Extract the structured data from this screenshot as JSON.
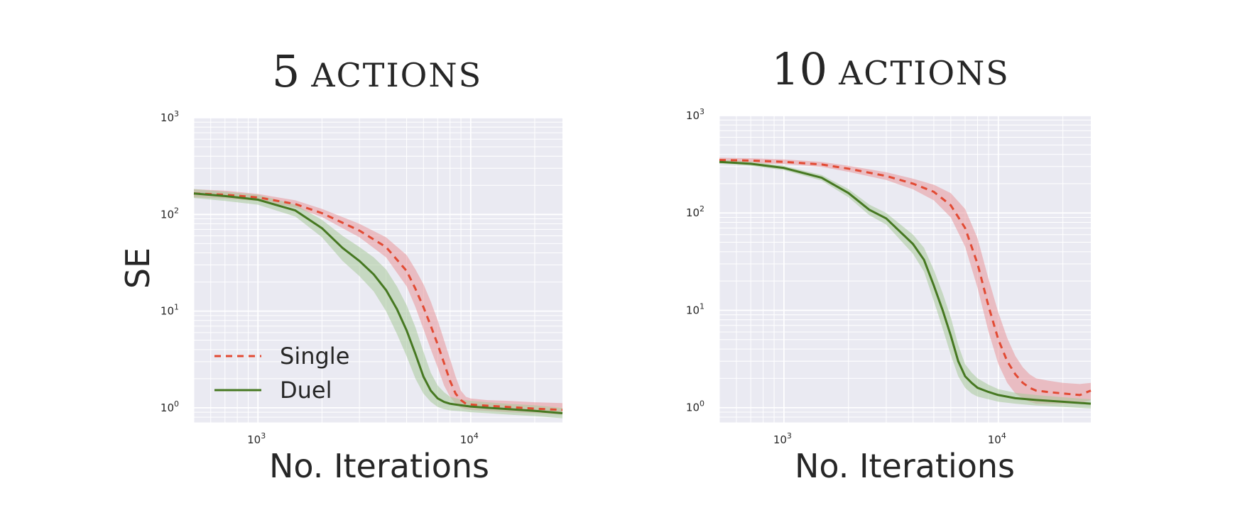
{
  "chart_data": [
    {
      "type": "line",
      "title": "5 actions",
      "title_parts": {
        "number": "5",
        "word": "ACTIONS"
      },
      "xlabel": "No. Iterations",
      "ylabel": "SE",
      "xscale": "log",
      "yscale": "log",
      "xlim": [
        500,
        27000
      ],
      "ylim": [
        0.7,
        1000
      ],
      "xticks": [
        {
          "base": "10",
          "exp": "3"
        },
        {
          "base": "10",
          "exp": "4"
        }
      ],
      "yticks": [
        {
          "base": "10",
          "exp": "0"
        },
        {
          "base": "10",
          "exp": "1"
        },
        {
          "base": "10",
          "exp": "2"
        },
        {
          "base": "10",
          "exp": "3"
        }
      ],
      "grid": true,
      "legend": {
        "placement": "lower-left",
        "entries": [
          "Single",
          "Duel"
        ]
      },
      "series": [
        {
          "name": "Single",
          "style": "dashed",
          "color": "#e24a33",
          "band_color": "#e8959a",
          "x": [
            500,
            700,
            1000,
            1500,
            2000,
            3000,
            4000,
            5000,
            5500,
            6000,
            6500,
            7000,
            7500,
            8000,
            8500,
            9000,
            9500,
            10000,
            12000,
            15000,
            20000,
            27000
          ],
          "y": [
            165,
            160,
            150,
            128,
            103,
            68,
            46,
            26,
            17,
            11,
            7.0,
            4.5,
            2.9,
            1.9,
            1.4,
            1.2,
            1.1,
            1.08,
            1.05,
            1.02,
            0.98,
            0.95
          ],
          "lower": [
            150,
            146,
            138,
            118,
            94,
            58,
            36,
            18,
            11,
            6.5,
            4.0,
            2.6,
            1.7,
            1.3,
            1.1,
            1.0,
            0.97,
            0.95,
            0.93,
            0.9,
            0.88,
            0.85
          ],
          "upper": [
            182,
            176,
            163,
            140,
            114,
            80,
            58,
            38,
            27,
            19,
            12.5,
            8.0,
            5.0,
            3.2,
            2.1,
            1.5,
            1.3,
            1.25,
            1.2,
            1.18,
            1.14,
            1.12
          ]
        },
        {
          "name": "Duel",
          "style": "solid",
          "color": "#467821",
          "band_color": "#a7c99a",
          "x": [
            500,
            700,
            1000,
            1500,
            2000,
            2500,
            3000,
            3500,
            4000,
            4500,
            5000,
            5500,
            6000,
            6500,
            7000,
            7500,
            8000,
            9000,
            10000,
            12000,
            15000,
            20000,
            27000
          ],
          "y": [
            165,
            155,
            142,
            110,
            72,
            45,
            33,
            24,
            16.5,
            10.5,
            6.3,
            3.6,
            2.1,
            1.5,
            1.25,
            1.15,
            1.1,
            1.06,
            1.03,
            1.0,
            0.97,
            0.93,
            0.88
          ],
          "lower": [
            148,
            138,
            126,
            95,
            58,
            33,
            23,
            16,
            10,
            5.8,
            3.4,
            2.0,
            1.4,
            1.15,
            1.02,
            0.97,
            0.94,
            0.92,
            0.9,
            0.88,
            0.85,
            0.82,
            0.78
          ],
          "upper": [
            183,
            172,
            160,
            126,
            88,
            60,
            46,
            36,
            27,
            18,
            11.5,
            6.8,
            3.8,
            2.3,
            1.7,
            1.45,
            1.3,
            1.22,
            1.18,
            1.14,
            1.1,
            1.06,
            1.0
          ]
        }
      ]
    },
    {
      "type": "line",
      "title": "10 actions",
      "title_parts": {
        "number": "10",
        "word": "ACTIONS"
      },
      "xlabel": "No. Iterations",
      "ylabel": "",
      "xscale": "log",
      "yscale": "log",
      "xlim": [
        500,
        27000
      ],
      "ylim": [
        0.7,
        1000
      ],
      "xticks": [
        {
          "base": "10",
          "exp": "3"
        },
        {
          "base": "10",
          "exp": "4"
        }
      ],
      "yticks": [
        {
          "base": "10",
          "exp": "0"
        },
        {
          "base": "10",
          "exp": "1"
        },
        {
          "base": "10",
          "exp": "2"
        },
        {
          "base": "10",
          "exp": "3"
        }
      ],
      "grid": true,
      "legend": null,
      "series": [
        {
          "name": "Single",
          "style": "dashed",
          "color": "#e24a33",
          "band_color": "#e8959a",
          "x": [
            500,
            700,
            1000,
            1500,
            2000,
            3000,
            4000,
            5000,
            6000,
            7000,
            8000,
            9000,
            10000,
            11000,
            12000,
            13000,
            14000,
            15000,
            17000,
            20000,
            24000,
            27000
          ],
          "y": [
            350,
            345,
            335,
            315,
            285,
            240,
            200,
            165,
            120,
            70,
            30,
            11,
            5.0,
            3.0,
            2.2,
            1.8,
            1.6,
            1.5,
            1.45,
            1.4,
            1.35,
            1.5
          ],
          "lower": [
            330,
            326,
            318,
            298,
            265,
            218,
            175,
            135,
            90,
            45,
            17,
            6.0,
            2.8,
            1.8,
            1.4,
            1.25,
            1.15,
            1.1,
            1.1,
            1.1,
            1.1,
            1.2
          ],
          "upper": [
            370,
            365,
            355,
            335,
            305,
            262,
            225,
            195,
            160,
            110,
            55,
            21,
            9.5,
            5.2,
            3.4,
            2.6,
            2.2,
            2.0,
            1.9,
            1.8,
            1.75,
            1.8
          ]
        },
        {
          "name": "Duel",
          "style": "solid",
          "color": "#467821",
          "band_color": "#a7c99a",
          "x": [
            500,
            700,
            1000,
            1500,
            2000,
            2500,
            3000,
            4000,
            4500,
            5000,
            5500,
            6000,
            6500,
            7000,
            7500,
            8000,
            9000,
            10000,
            12000,
            15000,
            20000,
            27000
          ],
          "y": [
            335,
            320,
            290,
            230,
            160,
            108,
            88,
            48,
            33,
            18,
            10,
            5.5,
            3.0,
            2.1,
            1.8,
            1.6,
            1.45,
            1.35,
            1.25,
            1.2,
            1.15,
            1.1
          ],
          "lower": [
            320,
            305,
            275,
            215,
            145,
            95,
            76,
            38,
            25,
            12.5,
            6.5,
            3.5,
            2.1,
            1.6,
            1.4,
            1.3,
            1.22,
            1.15,
            1.1,
            1.05,
            1.02,
            0.98
          ],
          "upper": [
            352,
            337,
            305,
            246,
            176,
            122,
            100,
            60,
            44,
            26,
            15,
            8.5,
            4.4,
            2.8,
            2.3,
            2.0,
            1.72,
            1.55,
            1.42,
            1.35,
            1.28,
            1.22
          ]
        }
      ]
    }
  ]
}
